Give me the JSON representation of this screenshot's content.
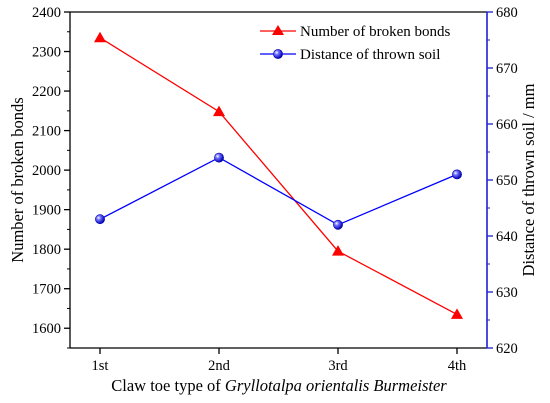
{
  "chart_data": {
    "type": "line",
    "title": "",
    "categories": [
      "1st",
      "2nd",
      "3rd",
      "4th"
    ],
    "xlabel_prefix": "Claw toe type of ",
    "xlabel_italic": "Gryllotalpa orientalis Burmeister",
    "left_axis": {
      "label": "Number of broken bonds",
      "ylim": [
        1550,
        2400
      ],
      "ticks": [
        1600,
        1700,
        1800,
        1900,
        2000,
        2100,
        2200,
        2300,
        2400
      ]
    },
    "right_axis": {
      "label": "Distance of thrown soil / mm",
      "ylim": [
        620,
        680
      ],
      "ticks": [
        620,
        630,
        640,
        650,
        660,
        670,
        680
      ],
      "color": "#1f1fd6"
    },
    "series": [
      {
        "name": "Number of broken bonds",
        "axis": "left",
        "color": "#ff0000",
        "marker": "triangle",
        "values": [
          2335,
          2148,
          1795,
          1635
        ]
      },
      {
        "name": "Distance of thrown soil",
        "axis": "right",
        "color": "#0000ff",
        "marker": "circle",
        "values": [
          643,
          654,
          642,
          651
        ]
      }
    ],
    "legend_position": "top-right",
    "grid": false
  }
}
